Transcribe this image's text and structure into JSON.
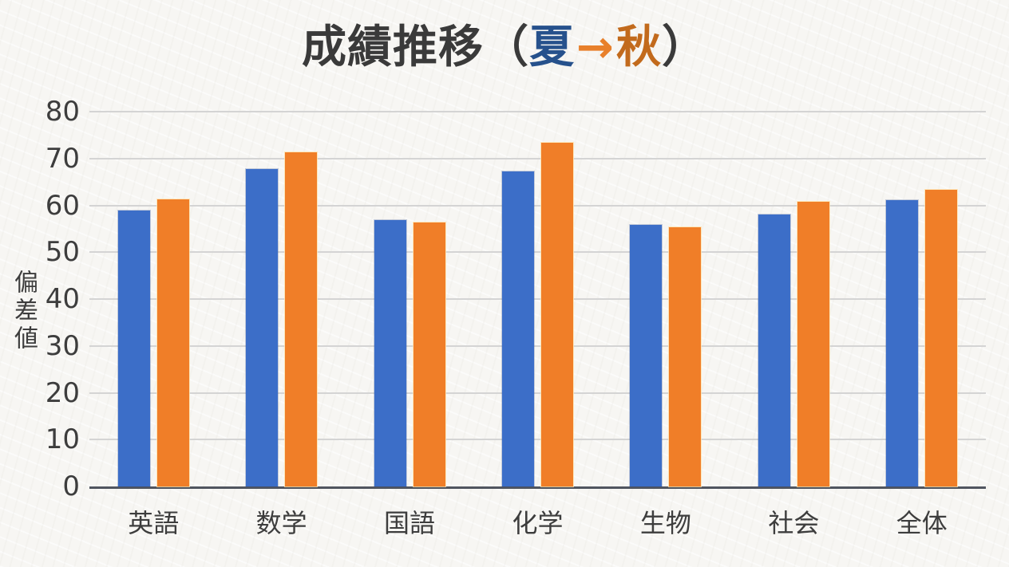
{
  "title": {
    "main": "成績推移",
    "paren_open": "（",
    "summer": "夏",
    "arrow": "→",
    "autumn": "秋",
    "paren_close": "）"
  },
  "colors": {
    "title_text": "#3a3a3a",
    "summer_text": "#26518c",
    "arrow_text": "#e8802b",
    "autumn_text": "#c26a1c",
    "summer_bar": "#3c6ec8",
    "autumn_bar": "#f07e28",
    "gridline": "#d4d4d4",
    "axis_line": "#50555f",
    "tick_text": "#3d3d3d"
  },
  "chart_data": {
    "type": "bar",
    "title": "成績推移（夏→秋）",
    "categories": [
      "英語",
      "数学",
      "国語",
      "化学",
      "生物",
      "社会",
      "全体"
    ],
    "series": [
      {
        "name": "夏",
        "color": "#3c6ec8",
        "values": [
          58.9,
          67.8,
          56.8,
          67.2,
          55.9,
          58.1,
          61.1
        ]
      },
      {
        "name": "秋",
        "color": "#f07e28",
        "values": [
          61.2,
          71.4,
          56.3,
          73.3,
          55.3,
          60.8,
          63.4
        ]
      }
    ],
    "xlabel": "",
    "ylabel": "偏差値",
    "ylim": [
      0,
      80
    ],
    "yticks": [
      0,
      10,
      20,
      30,
      40,
      50,
      60,
      70,
      80
    ],
    "grid": true,
    "legend_position": "none"
  }
}
